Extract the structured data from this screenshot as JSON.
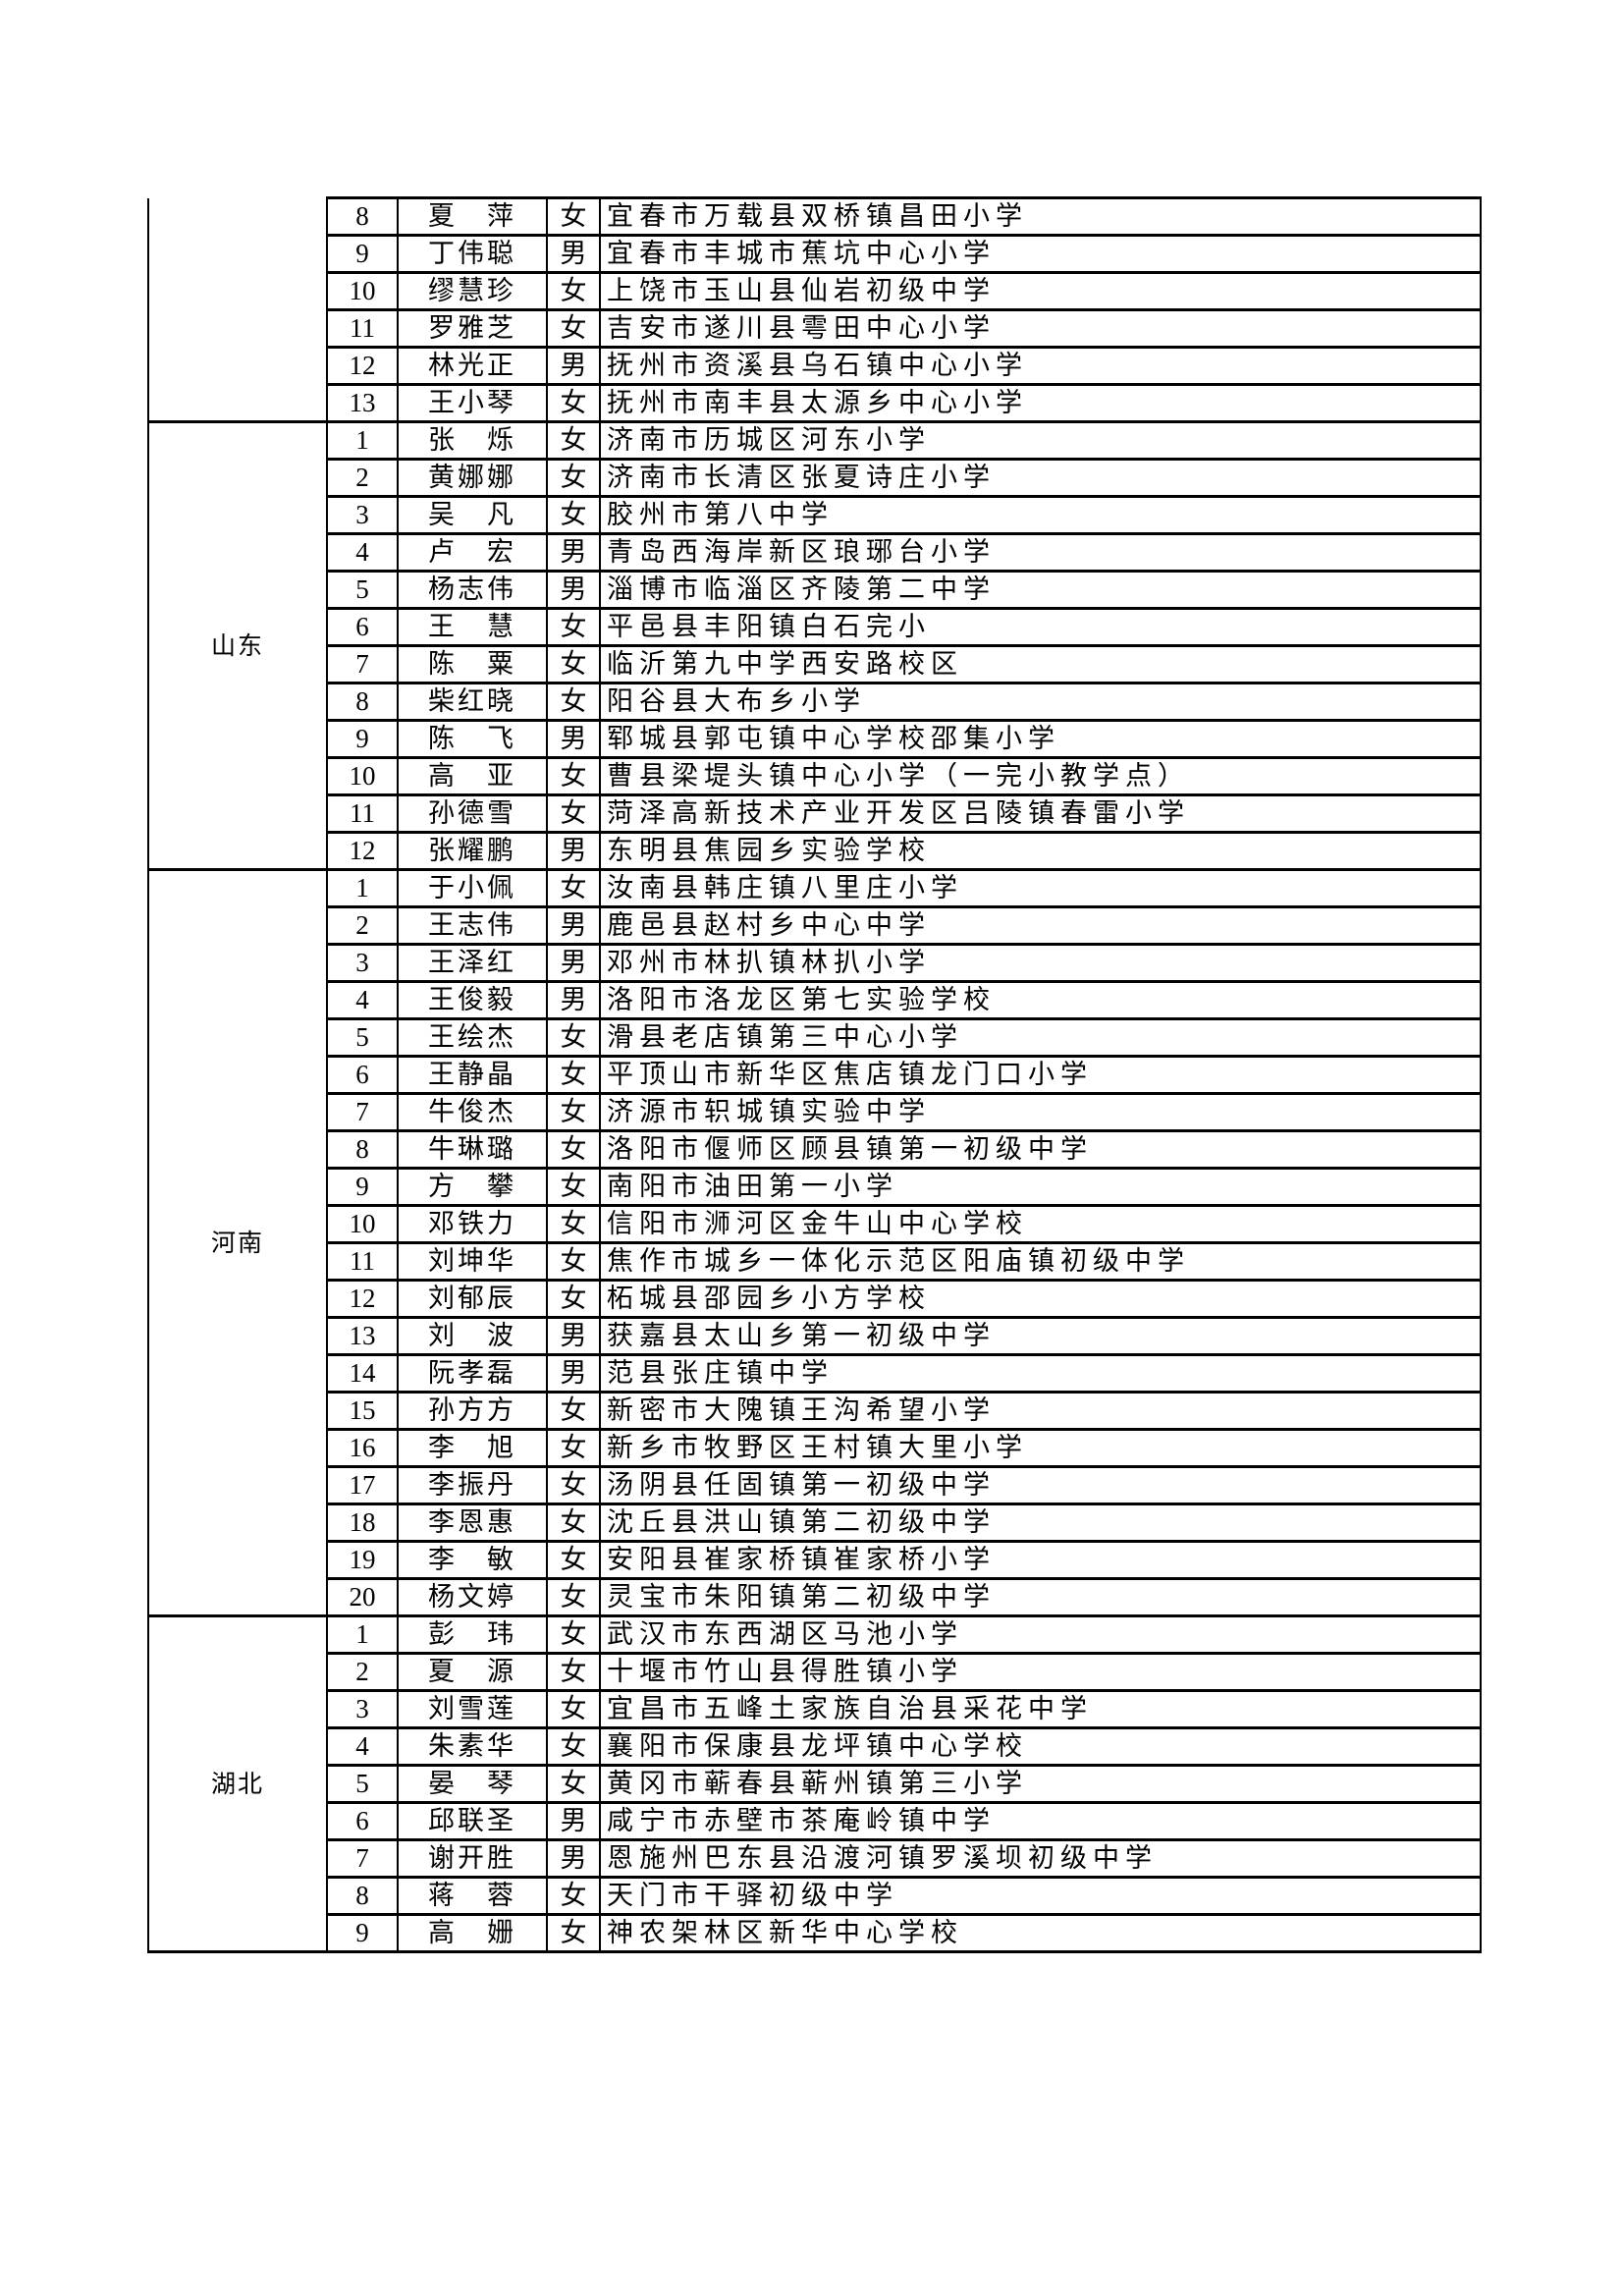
{
  "groups": [
    {
      "province": "",
      "rows": [
        [
          "8",
          "夏　萍",
          "女",
          "宜春市万载县双桥镇昌田小学"
        ],
        [
          "9",
          "丁伟聪",
          "男",
          "宜春市丰城市蕉坑中心小学"
        ],
        [
          "10",
          "缪慧珍",
          "女",
          "上饶市玉山县仙岩初级中学"
        ],
        [
          "11",
          "罗雅芝",
          "女",
          "吉安市遂川县雩田中心小学"
        ],
        [
          "12",
          "林光正",
          "男",
          "抚州市资溪县乌石镇中心小学"
        ],
        [
          "13",
          "王小琴",
          "女",
          "抚州市南丰县太源乡中心小学"
        ]
      ]
    },
    {
      "province": "山东",
      "rows": [
        [
          "1",
          "张　烁",
          "女",
          "济南市历城区河东小学"
        ],
        [
          "2",
          "黄娜娜",
          "女",
          "济南市长清区张夏诗庄小学"
        ],
        [
          "3",
          "吴　凡",
          "女",
          "胶州市第八中学"
        ],
        [
          "4",
          "卢　宏",
          "男",
          "青岛西海岸新区琅琊台小学"
        ],
        [
          "5",
          "杨志伟",
          "男",
          "淄博市临淄区齐陵第二中学"
        ],
        [
          "6",
          "王　慧",
          "女",
          "平邑县丰阳镇白石完小"
        ],
        [
          "7",
          "陈　粟",
          "女",
          "临沂第九中学西安路校区"
        ],
        [
          "8",
          "柴红晓",
          "女",
          "阳谷县大布乡小学"
        ],
        [
          "9",
          "陈　飞",
          "男",
          "郓城县郭屯镇中心学校邵集小学"
        ],
        [
          "10",
          "高　亚",
          "女",
          "曹县梁堤头镇中心小学（一完小教学点）"
        ],
        [
          "11",
          "孙德雪",
          "女",
          "菏泽高新技术产业开发区吕陵镇春雷小学"
        ],
        [
          "12",
          "张耀鹏",
          "男",
          "东明县焦园乡实验学校"
        ]
      ]
    },
    {
      "province": "河南",
      "rows": [
        [
          "1",
          "于小佩",
          "女",
          "汝南县韩庄镇八里庄小学"
        ],
        [
          "2",
          "王志伟",
          "男",
          "鹿邑县赵村乡中心中学"
        ],
        [
          "3",
          "王泽红",
          "男",
          "邓州市林扒镇林扒小学"
        ],
        [
          "4",
          "王俊毅",
          "男",
          "洛阳市洛龙区第七实验学校"
        ],
        [
          "5",
          "王绘杰",
          "女",
          "滑县老店镇第三中心小学"
        ],
        [
          "6",
          "王静晶",
          "女",
          "平顶山市新华区焦店镇龙门口小学"
        ],
        [
          "7",
          "牛俊杰",
          "女",
          "济源市轵城镇实验中学"
        ],
        [
          "8",
          "牛琳璐",
          "女",
          "洛阳市偃师区顾县镇第一初级中学"
        ],
        [
          "9",
          "方　攀",
          "女",
          "南阳市油田第一小学"
        ],
        [
          "10",
          "邓铁力",
          "女",
          "信阳市浉河区金牛山中心学校"
        ],
        [
          "11",
          "刘坤华",
          "女",
          "焦作市城乡一体化示范区阳庙镇初级中学"
        ],
        [
          "12",
          "刘郁辰",
          "女",
          "柘城县邵园乡小方学校"
        ],
        [
          "13",
          "刘　波",
          "男",
          "获嘉县太山乡第一初级中学"
        ],
        [
          "14",
          "阮孝磊",
          "男",
          "范县张庄镇中学"
        ],
        [
          "15",
          "孙方方",
          "女",
          "新密市大隗镇王沟希望小学"
        ],
        [
          "16",
          "李　旭",
          "女",
          "新乡市牧野区王村镇大里小学"
        ],
        [
          "17",
          "李振丹",
          "女",
          "汤阴县任固镇第一初级中学"
        ],
        [
          "18",
          "李恩惠",
          "女",
          "沈丘县洪山镇第二初级中学"
        ],
        [
          "19",
          "李　敏",
          "女",
          "安阳县崔家桥镇崔家桥小学"
        ],
        [
          "20",
          "杨文婷",
          "女",
          "灵宝市朱阳镇第二初级中学"
        ]
      ]
    },
    {
      "province": "湖北",
      "rows": [
        [
          "1",
          "彭　玮",
          "女",
          "武汉市东西湖区马池小学"
        ],
        [
          "2",
          "夏　源",
          "女",
          "十堰市竹山县得胜镇小学"
        ],
        [
          "3",
          "刘雪莲",
          "女",
          "宜昌市五峰土家族自治县采花中学"
        ],
        [
          "4",
          "朱素华",
          "女",
          "襄阳市保康县龙坪镇中心学校"
        ],
        [
          "5",
          "晏　琴",
          "女",
          "黄冈市蕲春县蕲州镇第三小学"
        ],
        [
          "6",
          "邱联圣",
          "男",
          "咸宁市赤壁市茶庵岭镇中学"
        ],
        [
          "7",
          "谢开胜",
          "男",
          "恩施州巴东县沿渡河镇罗溪坝初级中学"
        ],
        [
          "8",
          "蒋　蓉",
          "女",
          "天门市干驿初级中学"
        ],
        [
          "9",
          "高　姗",
          "女",
          "神农架林区新华中心学校"
        ]
      ]
    }
  ]
}
